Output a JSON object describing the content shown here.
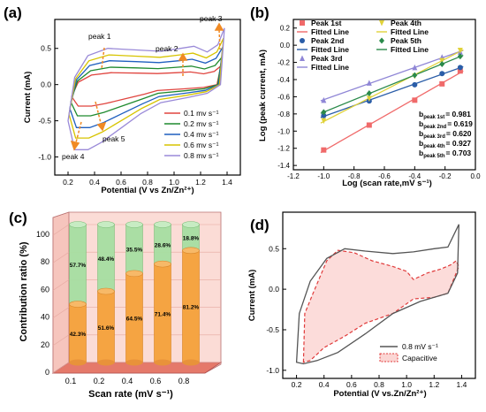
{
  "panels": {
    "a": {
      "tag": "(a)",
      "xlabel": "Potential (V vs Zn/Zn²⁺)",
      "ylabel": "Current (mA)",
      "xticks": [
        "0.2",
        "0.4",
        "0.6",
        "0.8",
        "1.0",
        "1.2",
        "1.4"
      ],
      "yticks": [
        "0.5",
        "0.0",
        "-0.5",
        "-1.0"
      ],
      "annotations": [
        "peak 1",
        "peak 2",
        "peak 3",
        "peak 4",
        "peak 5"
      ],
      "legend": [
        {
          "label": "0.1 mv s⁻¹",
          "color": "#e0453f"
        },
        {
          "label": "0.2 mv s⁻¹",
          "color": "#1f8a2e"
        },
        {
          "label": "0.4 mv s⁻¹",
          "color": "#1f5fbf"
        },
        {
          "label": "0.6 mv s⁻¹",
          "color": "#d7c400"
        },
        {
          "label": "0.8 mv s⁻¹",
          "color": "#9a8ad8"
        }
      ]
    },
    "b": {
      "tag": "(b)",
      "xlabel": "Log (scan rate,mV s⁻¹)",
      "ylabel": "Log (peak current, mA)",
      "xticks": [
        "-1.2",
        "-1.0",
        "-0.8",
        "-0.6",
        "-0.4",
        "-0.2",
        "0.0"
      ],
      "yticks": [
        "0.2",
        "0.0",
        "-0.2",
        "-0.4",
        "-0.6",
        "-0.8",
        "-1.0",
        "-1.2",
        "-1.4"
      ],
      "legend": [
        {
          "label": "Peak 1st",
          "color": "#f06a6a",
          "marker": "square"
        },
        {
          "label": "Fitted Line",
          "color": "#f06a6a",
          "marker": "line"
        },
        {
          "label": "Peak 2nd",
          "color": "#2a5da8",
          "marker": "circle"
        },
        {
          "label": "Fitted Line",
          "color": "#2a5da8",
          "marker": "line"
        },
        {
          "label": "Peak 3rd",
          "color": "#8f86d6",
          "marker": "triangle"
        },
        {
          "label": "Fitted Line",
          "color": "#8f86d6",
          "marker": "line"
        },
        {
          "label": "Peak 4th",
          "color": "#e0d23a",
          "marker": "down-triangle"
        },
        {
          "label": "Fitted Line",
          "color": "#e0d23a",
          "marker": "line"
        },
        {
          "label": "Peak 5th",
          "color": "#2a8a4a",
          "marker": "diamond"
        },
        {
          "label": "Fitted Line",
          "color": "#2a8a4a",
          "marker": "line"
        }
      ],
      "bvalues": [
        {
          "name": "b",
          "sub": "peak 1st",
          "value": "= 0.981"
        },
        {
          "name": "b",
          "sub": "peak 2nd",
          "value": "= 0.619"
        },
        {
          "name": "b",
          "sub": "peak 3rd",
          "value": "= 0.620"
        },
        {
          "name": "b",
          "sub": "peak 4th",
          "value": "= 0.927"
        },
        {
          "name": "b",
          "sub": "peak 5th",
          "value": "= 0.703"
        }
      ]
    },
    "c": {
      "tag": "(c)",
      "xlabel": "Scan rate (mV s⁻¹)",
      "ylabel": "Contribution ratio (%)",
      "xticks": [
        "0.1",
        "0.2",
        "0.4",
        "0.6",
        "0.8"
      ],
      "yticks": [
        "100",
        "80",
        "60",
        "40",
        "20",
        "0"
      ],
      "upper_labels": [
        "57.7%",
        "48.4%",
        "35.5%",
        "28.6%",
        "18.8%"
      ],
      "lower_labels": [
        "42.3%",
        "51.6%",
        "64.5%",
        "71.4%",
        "81.2%"
      ]
    },
    "d": {
      "tag": "(d)",
      "xlabel": "Potential (V vs.Zn/Zn²⁺)",
      "ylabel": "Current (mA)",
      "xticks": [
        "0.2",
        "0.4",
        "0.6",
        "0.8",
        "1.0",
        "1.2",
        "1.4"
      ],
      "yticks": [
        "0.5",
        "0.0",
        "-0.5",
        "-1.0"
      ],
      "legend": [
        {
          "label": "0.8 mV s⁻¹",
          "color": "#555555"
        },
        {
          "label": "Capacitive",
          "color": "#e03a3a"
        }
      ]
    }
  },
  "chart_data": [
    {
      "panel": "a",
      "type": "line",
      "xlabel": "Potential (V vs Zn/Zn²⁺)",
      "ylabel": "Current (mA)",
      "xlim": [
        0.1,
        1.5
      ],
      "ylim": [
        -1.25,
        0.9
      ],
      "series": [
        {
          "name": "0.1 mv s⁻¹",
          "scale": 0.33,
          "color": "#e0453f"
        },
        {
          "name": "0.2 mv s⁻¹",
          "scale": 0.48,
          "color": "#1f8a2e"
        },
        {
          "name": "0.4 mv s⁻¹",
          "scale": 0.66,
          "color": "#1f5fbf"
        },
        {
          "name": "0.6 mv s⁻¹",
          "scale": 0.82,
          "color": "#d7c400"
        },
        {
          "name": "0.8 mv s⁻¹",
          "scale": 1.0,
          "color": "#9a8ad8"
        }
      ],
      "base_curve": {
        "upper": [
          [
            0.2,
            -0.5
          ],
          [
            0.25,
            0.1
          ],
          [
            0.35,
            0.4
          ],
          [
            0.5,
            0.5
          ],
          [
            0.7,
            0.48
          ],
          [
            0.9,
            0.46
          ],
          [
            1.05,
            0.5
          ],
          [
            1.15,
            0.53
          ],
          [
            1.25,
            0.45
          ],
          [
            1.33,
            0.55
          ],
          [
            1.38,
            0.78
          ]
        ],
        "lower": [
          [
            1.38,
            0.78
          ],
          [
            1.35,
            0.0
          ],
          [
            1.25,
            -0.12
          ],
          [
            1.1,
            -0.18
          ],
          [
            0.9,
            -0.25
          ],
          [
            0.75,
            -0.4
          ],
          [
            0.6,
            -0.6
          ],
          [
            0.45,
            -0.8
          ],
          [
            0.35,
            -0.9
          ],
          [
            0.25,
            -0.9
          ],
          [
            0.2,
            -0.5
          ]
        ]
      }
    },
    {
      "panel": "b",
      "type": "scatter",
      "xlabel": "Log (scan rate,mV s⁻¹)",
      "ylabel": "Log (peak current, mA)",
      "xlim": [
        -1.2,
        0.0
      ],
      "ylim": [
        -1.45,
        0.3
      ],
      "x": [
        -1.0,
        -0.7,
        -0.4,
        -0.22,
        -0.1
      ],
      "series": [
        {
          "name": "Peak 1st",
          "values": [
            -1.22,
            -0.93,
            -0.64,
            -0.45,
            -0.3
          ],
          "color": "#f06a6a"
        },
        {
          "name": "Peak 2nd",
          "values": [
            -0.82,
            -0.65,
            -0.46,
            -0.33,
            -0.26
          ],
          "color": "#2a5da8"
        },
        {
          "name": "Peak 3rd",
          "values": [
            -0.64,
            -0.44,
            -0.26,
            -0.14,
            -0.08
          ],
          "color": "#8f86d6"
        },
        {
          "name": "Peak 4th",
          "values": [
            -0.88,
            -0.62,
            -0.36,
            -0.18,
            -0.06
          ],
          "color": "#e0d23a"
        },
        {
          "name": "Peak 5th",
          "values": [
            -0.78,
            -0.56,
            -0.35,
            -0.22,
            -0.13
          ],
          "color": "#2a8a4a"
        }
      ],
      "b_values": [
        0.981,
        0.619,
        0.62,
        0.927,
        0.703
      ]
    },
    {
      "panel": "c",
      "type": "bar",
      "xlabel": "Scan rate (mV s⁻¹)",
      "ylabel": "Contribution ratio (%)",
      "categories": [
        "0.1",
        "0.2",
        "0.4",
        "0.6",
        "0.8"
      ],
      "series": [
        {
          "name": "lower",
          "values": [
            42.3,
            51.6,
            64.5,
            71.4,
            81.2
          ],
          "color": "#f5a442"
        },
        {
          "name": "upper",
          "values": [
            57.7,
            48.4,
            35.5,
            28.6,
            18.8
          ],
          "color": "#9ed99a"
        }
      ],
      "ylim": [
        0,
        100
      ]
    },
    {
      "panel": "d",
      "type": "line",
      "xlabel": "Potential (V vs.Zn/Zn²⁺)",
      "ylabel": "Current (mA)",
      "xlim": [
        0.1,
        1.5
      ],
      "ylim": [
        -1.1,
        0.95
      ],
      "series": [
        {
          "name": "0.8 mV s⁻¹",
          "color": "#555555",
          "points": [
            [
              0.2,
              -0.9
            ],
            [
              0.22,
              -0.3
            ],
            [
              0.3,
              0.1
            ],
            [
              0.42,
              0.38
            ],
            [
              0.55,
              0.5
            ],
            [
              0.7,
              0.47
            ],
            [
              0.9,
              0.44
            ],
            [
              1.05,
              0.46
            ],
            [
              1.2,
              0.5
            ],
            [
              1.3,
              0.52
            ],
            [
              1.38,
              0.8
            ],
            [
              1.37,
              0.2
            ],
            [
              1.3,
              -0.05
            ],
            [
              1.1,
              -0.15
            ],
            [
              0.9,
              -0.3
            ],
            [
              0.7,
              -0.55
            ],
            [
              0.5,
              -0.78
            ],
            [
              0.35,
              -0.88
            ],
            [
              0.25,
              -0.92
            ],
            [
              0.2,
              -0.9
            ]
          ]
        },
        {
          "name": "Capacitive",
          "color": "#e03a3a",
          "points": [
            [
              0.25,
              -0.9
            ],
            [
              0.26,
              -0.3
            ],
            [
              0.32,
              -0.05
            ],
            [
              0.42,
              0.35
            ],
            [
              0.5,
              0.48
            ],
            [
              0.62,
              0.45
            ],
            [
              0.75,
              0.35
            ],
            [
              0.9,
              0.28
            ],
            [
              1.0,
              0.22
            ],
            [
              1.05,
              0.12
            ],
            [
              1.15,
              0.2
            ],
            [
              1.25,
              0.25
            ],
            [
              1.32,
              0.3
            ],
            [
              1.36,
              0.35
            ],
            [
              1.38,
              0.28
            ],
            [
              1.3,
              -0.05
            ],
            [
              1.2,
              -0.1
            ],
            [
              1.05,
              -0.12
            ],
            [
              0.9,
              -0.3
            ],
            [
              0.7,
              -0.42
            ],
            [
              0.55,
              -0.58
            ],
            [
              0.4,
              -0.72
            ],
            [
              0.3,
              -0.88
            ],
            [
              0.25,
              -0.9
            ]
          ]
        }
      ]
    }
  ]
}
